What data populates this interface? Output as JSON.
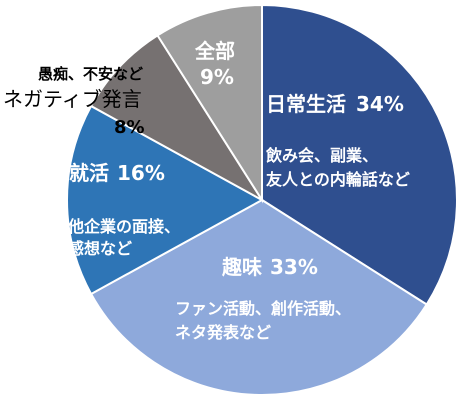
{
  "chart_data": {
    "type": "pie",
    "title": "",
    "legend": "none",
    "slices": [
      {
        "label": "日常生活",
        "value": 34,
        "value_text": "34%",
        "note_lines": [
          "飲み会、副業、",
          "友人との内輪話など"
        ],
        "color": "#2f4f8f"
      },
      {
        "label": "趣味",
        "value": 33,
        "value_text": "33%",
        "note_lines": [
          "ファン活動、創作活動、",
          "ネタ発表など"
        ],
        "color": "#8ea9db"
      },
      {
        "label": "就活",
        "value": 16,
        "value_text": "16%",
        "note_lines": [
          "他企業の面接、",
          "感想など"
        ],
        "color": "#2e75b6"
      },
      {
        "label_lines": [
          "愚痴、不安など",
          "ネガティブ発言"
        ],
        "value": 8,
        "value_text": "8%",
        "color": "#767171"
      },
      {
        "label": "全部",
        "value": 9,
        "value_text": "9%",
        "color": "#9e9e9e"
      }
    ]
  }
}
